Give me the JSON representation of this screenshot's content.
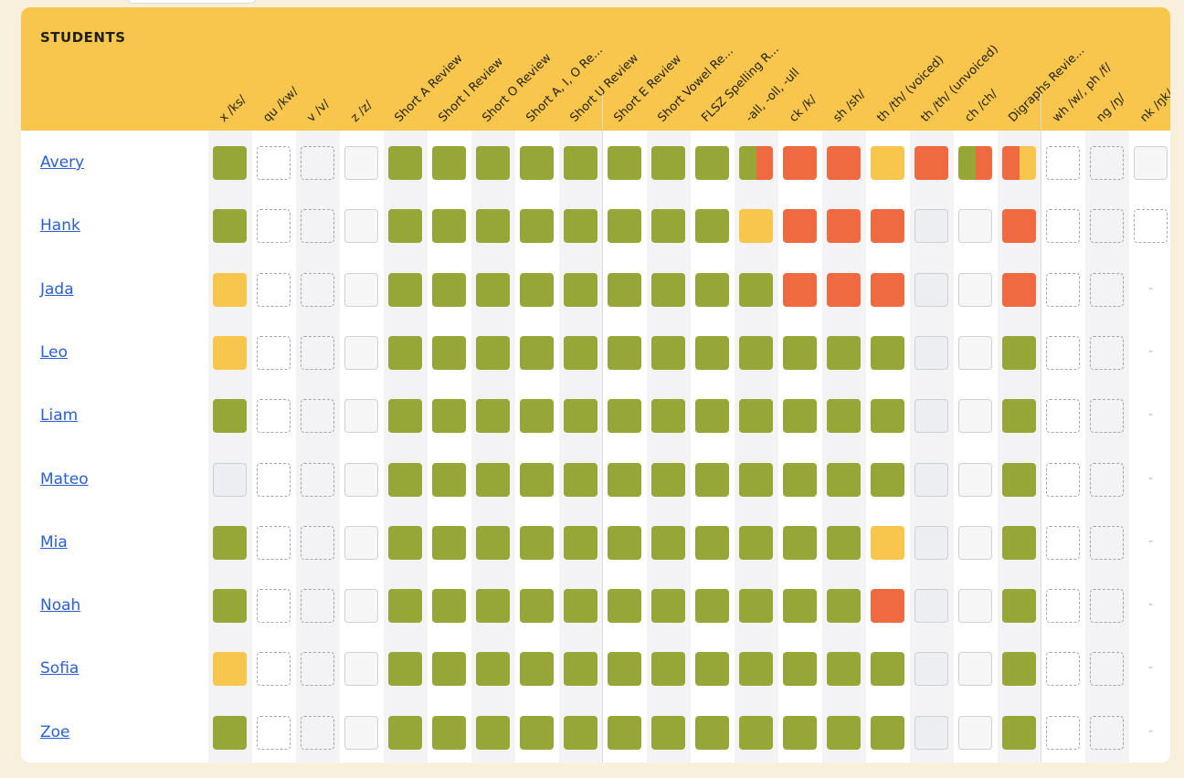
{
  "table": {
    "students_label": "STUDENTS",
    "columns": [
      "x /ks/",
      "qu /kw/",
      "v /v/",
      "z /z/",
      "Short A Review",
      "Short I Review",
      "Short O Review",
      "Short A, I, O Re...",
      "Short U Review",
      "Short E Review",
      "Short Vowel Re...",
      "FLSZ Spelling R...",
      "-all, -oll, -ull",
      "ck /k/",
      "sh /sh/",
      "th /th/ (voiced)",
      "th /th/ (unvoiced)",
      "ch /ch/",
      "Digraphs Revie...",
      "wh /w/, ph /f/",
      "ng /ŋ/",
      "nk /ŋk/"
    ],
    "legend_colors": {
      "mastered": "#96a637",
      "developing": "#f8c64c",
      "struggling": "#ef6a40",
      "header": "#f8c64c",
      "link": "#2a5fd6"
    },
    "rows": [
      {
        "name": "Avery",
        "cells": [
          "M",
          "U",
          "U",
          "B",
          "M",
          "M",
          "M",
          "M",
          "M",
          "M",
          "M",
          "M",
          "MS",
          "S",
          "S",
          "D",
          "S",
          "MS",
          "SD",
          "U",
          "U",
          "B"
        ]
      },
      {
        "name": "Hank",
        "cells": [
          "M",
          "U",
          "U",
          "B",
          "M",
          "M",
          "M",
          "M",
          "M",
          "M",
          "M",
          "M",
          "D",
          "S",
          "S",
          "S",
          "N",
          "B",
          "S",
          "U",
          "U",
          "U"
        ]
      },
      {
        "name": "Jada",
        "cells": [
          "D",
          "U",
          "U",
          "B",
          "M",
          "M",
          "M",
          "M",
          "M",
          "M",
          "M",
          "M",
          "M",
          "S",
          "S",
          "S",
          "N",
          "B",
          "S",
          "U",
          "U",
          "-"
        ]
      },
      {
        "name": "Leo",
        "cells": [
          "D",
          "U",
          "U",
          "B",
          "M",
          "M",
          "M",
          "M",
          "M",
          "M",
          "M",
          "M",
          "M",
          "M",
          "M",
          "M",
          "N",
          "B",
          "M",
          "U",
          "U",
          "-"
        ]
      },
      {
        "name": "Liam",
        "cells": [
          "M",
          "U",
          "U",
          "B",
          "M",
          "M",
          "M",
          "M",
          "M",
          "M",
          "M",
          "M",
          "M",
          "M",
          "M",
          "M",
          "N",
          "B",
          "M",
          "U",
          "U",
          "-"
        ]
      },
      {
        "name": "Mateo",
        "cells": [
          "N",
          "U",
          "U",
          "B",
          "M",
          "M",
          "M",
          "M",
          "M",
          "M",
          "M",
          "M",
          "M",
          "M",
          "M",
          "M",
          "N",
          "B",
          "M",
          "U",
          "U",
          "-"
        ]
      },
      {
        "name": "Mia",
        "cells": [
          "M",
          "U",
          "U",
          "B",
          "M",
          "M",
          "M",
          "M",
          "M",
          "M",
          "M",
          "M",
          "M",
          "M",
          "M",
          "D",
          "N",
          "B",
          "M",
          "U",
          "U",
          "-"
        ]
      },
      {
        "name": "Noah",
        "cells": [
          "M",
          "U",
          "U",
          "B",
          "M",
          "M",
          "M",
          "M",
          "M",
          "M",
          "M",
          "M",
          "M",
          "M",
          "M",
          "S",
          "N",
          "B",
          "M",
          "U",
          "U",
          "-"
        ]
      },
      {
        "name": "Sofia",
        "cells": [
          "D",
          "U",
          "U",
          "B",
          "M",
          "M",
          "M",
          "M",
          "M",
          "M",
          "M",
          "M",
          "M",
          "M",
          "M",
          "M",
          "N",
          "B",
          "M",
          "U",
          "U",
          "-"
        ]
      },
      {
        "name": "Zoe",
        "cells": [
          "M",
          "U",
          "U",
          "B",
          "M",
          "M",
          "M",
          "M",
          "M",
          "M",
          "M",
          "M",
          "M",
          "M",
          "M",
          "M",
          "N",
          "B",
          "M",
          "U",
          "U",
          "-"
        ]
      }
    ],
    "empty_mark": "-"
  }
}
